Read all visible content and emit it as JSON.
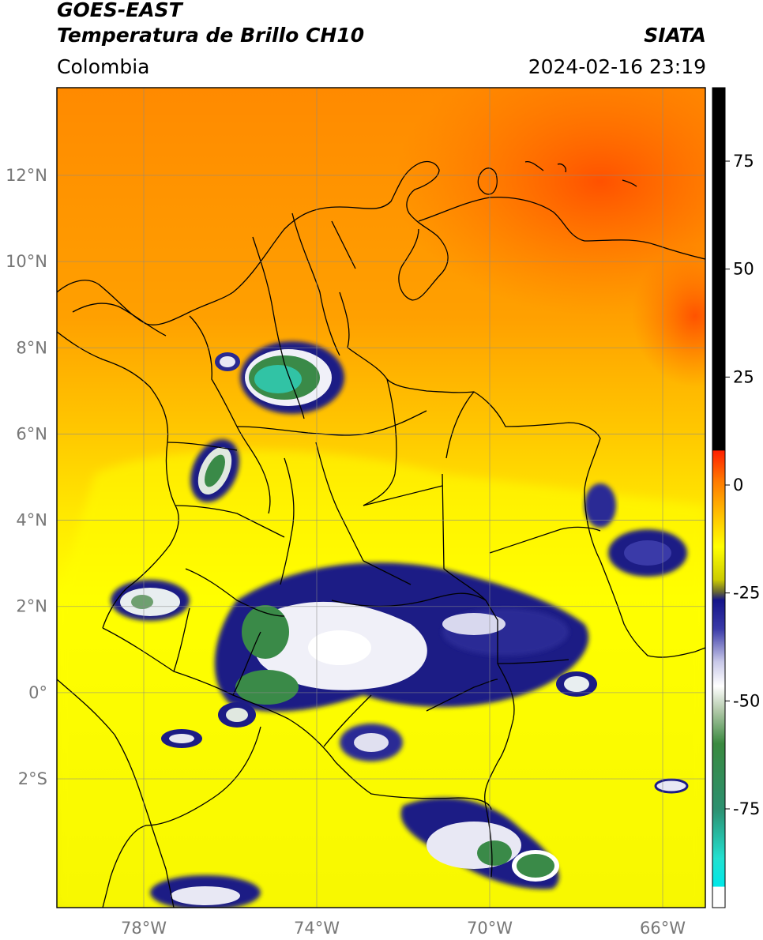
{
  "header": {
    "title_line1": "GOES-EAST",
    "title_line2": "Temperatura de Brillo CH10",
    "brand": "SIATA",
    "region": "Colombia",
    "timestamp": "2024-02-16 23:19"
  },
  "map": {
    "lat_ticks": [
      {
        "value": 12,
        "label": "12°N"
      },
      {
        "value": 10,
        "label": "10°N"
      },
      {
        "value": 8,
        "label": "8°N"
      },
      {
        "value": 6,
        "label": "6°N"
      },
      {
        "value": 4,
        "label": "4°N"
      },
      {
        "value": 2,
        "label": "2°N"
      },
      {
        "value": 0,
        "label": "0°"
      },
      {
        "value": -2,
        "label": "2°S"
      }
    ],
    "lon_ticks": [
      {
        "value": -78,
        "label": "78°W"
      },
      {
        "value": -74,
        "label": "74°W"
      },
      {
        "value": -70,
        "label": "70°W"
      },
      {
        "value": -66,
        "label": "66°W"
      }
    ],
    "colors": {
      "warm_orange": "#ff6a00",
      "yellow": "#ffff00",
      "navy": "#1c1c85",
      "green": "#3f8a48",
      "teal": "#31c3a5"
    }
  },
  "colorbar": {
    "ticks": [
      {
        "value": 75,
        "label": "75"
      },
      {
        "value": 50,
        "label": "50"
      },
      {
        "value": 25,
        "label": "25"
      },
      {
        "value": 0,
        "label": "0"
      },
      {
        "value": -25,
        "label": "-25"
      },
      {
        "value": -50,
        "label": "-50"
      },
      {
        "value": -75,
        "label": "-75"
      }
    ]
  }
}
